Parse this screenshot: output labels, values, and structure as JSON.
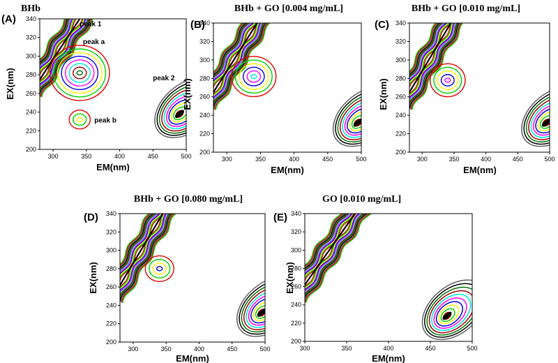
{
  "figure": {
    "type": "contour-grid",
    "panel_count": 5
  },
  "chart_data": [
    {
      "id": "A",
      "type": "contour",
      "panel_label": "(A)",
      "title": "BHb",
      "xlabel": "EM(nm)",
      "ylabel": "EX(nm)",
      "xlim": [
        280,
        500
      ],
      "ylim": [
        200,
        340
      ],
      "xticks": [
        300,
        350,
        400,
        450,
        500
      ],
      "yticks": [
        200,
        220,
        240,
        260,
        280,
        300,
        320,
        340
      ],
      "annotations": [
        {
          "text": "peak 1",
          "x": 340,
          "y": 332
        },
        {
          "text": "peak a",
          "x": 345,
          "y": 313
        },
        {
          "text": "peak 2",
          "x": 450,
          "y": 274
        },
        {
          "text": "peak b",
          "x": 362,
          "y": 229
        }
      ],
      "features": [
        {
          "name": "scatter-band",
          "from": [
            280,
            275
          ],
          "to": [
            340,
            340
          ],
          "levels": 12
        },
        {
          "name": "peak-a",
          "center": [
            340,
            282
          ],
          "levels": 8
        },
        {
          "name": "peak-b",
          "center": [
            340,
            232
          ],
          "levels": 3
        },
        {
          "name": "peak-2",
          "center": [
            490,
            238
          ],
          "levels": 10
        }
      ]
    },
    {
      "id": "B",
      "type": "contour",
      "panel_label": "(B)",
      "title": "BHb + GO [0.004 mg/mL]",
      "xlabel": "EM(nm)",
      "ylabel": "EX(nm)",
      "xlim": [
        280,
        500
      ],
      "ylim": [
        200,
        340
      ],
      "xticks": [
        300,
        350,
        400,
        450,
        500
      ],
      "yticks": [
        200,
        220,
        240,
        260,
        280,
        300,
        320,
        340
      ],
      "features": [
        {
          "name": "scatter-band",
          "from": [
            280,
            265
          ],
          "to": [
            345,
            340
          ],
          "levels": 12
        },
        {
          "name": "peak-a",
          "center": [
            340,
            282
          ],
          "levels": 6
        },
        {
          "name": "peak-2",
          "center": [
            495,
            232
          ],
          "levels": 10
        }
      ]
    },
    {
      "id": "C",
      "type": "contour",
      "panel_label": "(C)",
      "title": "BHb + GO [0.010 mg/mL]",
      "xlabel": "EM(nm)",
      "ylabel": "EX(nm)",
      "xlim": [
        280,
        500
      ],
      "ylim": [
        200,
        340
      ],
      "xticks": [
        300,
        350,
        400,
        450,
        500
      ],
      "yticks": [
        200,
        220,
        240,
        260,
        280,
        300,
        320,
        340
      ],
      "features": [
        {
          "name": "scatter-band",
          "from": [
            280,
            265
          ],
          "to": [
            345,
            340
          ],
          "levels": 12
        },
        {
          "name": "peak-a",
          "center": [
            340,
            278
          ],
          "levels": 5
        },
        {
          "name": "peak-2",
          "center": [
            495,
            232
          ],
          "levels": 10
        }
      ]
    },
    {
      "id": "D",
      "type": "contour",
      "panel_label": "(D)",
      "title": "BHb + GO [0.080 mg/mL]",
      "xlabel": "EM(nm)",
      "ylabel": "EX(nm)",
      "xlim": [
        280,
        500
      ],
      "ylim": [
        200,
        340
      ],
      "xticks": [
        300,
        350,
        400,
        450,
        500
      ],
      "yticks": [
        200,
        220,
        240,
        260,
        280,
        300,
        320,
        340
      ],
      "features": [
        {
          "name": "scatter-band",
          "from": [
            280,
            262
          ],
          "to": [
            345,
            340
          ],
          "levels": 12
        },
        {
          "name": "peak-a",
          "center": [
            340,
            280
          ],
          "levels": 4
        },
        {
          "name": "peak-2",
          "center": [
            495,
            232
          ],
          "levels": 10
        }
      ]
    },
    {
      "id": "E",
      "type": "contour",
      "panel_label": "(E)",
      "title": "GO [0.010 mg/mL]",
      "xlabel": "EM(nm)",
      "ylabel": "EX(nm)",
      "xlim": [
        300,
        500
      ],
      "ylim": [
        200,
        340
      ],
      "xticks": [
        300,
        350,
        400,
        450,
        500
      ],
      "yticks": [
        200,
        220,
        240,
        260,
        280,
        300,
        320,
        340
      ],
      "features": [
        {
          "name": "scatter-band",
          "from": [
            300,
            262
          ],
          "to": [
            360,
            340
          ],
          "levels": 12
        },
        {
          "name": "peak-2",
          "center": [
            470,
            228
          ],
          "levels": 10
        }
      ]
    }
  ],
  "contour_colors": [
    "#e00000",
    "#00d000",
    "#f5f500",
    "#0000e0",
    "#ff00ff",
    "#00e5e5",
    "#a00000",
    "#007000",
    "#000000",
    "#606060"
  ]
}
